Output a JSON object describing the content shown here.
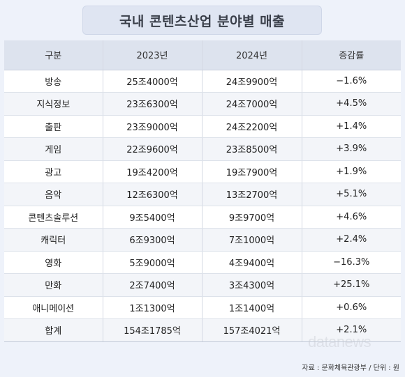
{
  "title": "국내 콘텐츠산업 분야별 매출",
  "table": {
    "headers": [
      "구분",
      "2023년",
      "2024년",
      "증감률"
    ],
    "rows": [
      [
        "방송",
        "25조4000억",
        "24조9900억",
        "−1.6%"
      ],
      [
        "지식정보",
        "23조6300억",
        "24조7000억",
        "+4.5%"
      ],
      [
        "출판",
        "23조9000억",
        "24조2200억",
        "+1.4%"
      ],
      [
        "게임",
        "22조9600억",
        "23조8500억",
        "+3.9%"
      ],
      [
        "광고",
        "19조4200억",
        "19조7900억",
        "+1.9%"
      ],
      [
        "음악",
        "12조6300억",
        "13조2700억",
        "+5.1%"
      ],
      [
        "콘텐츠솔루션",
        "9조5400억",
        "9조9700억",
        "+4.6%"
      ],
      [
        "캐릭터",
        "6조9300억",
        "7조1000억",
        "+2.4%"
      ],
      [
        "영화",
        "5조9000억",
        "4조9400억",
        "−16.3%"
      ],
      [
        "만화",
        "2조7400억",
        "3조4300억",
        "+25.1%"
      ],
      [
        "애니메이션",
        "1조1300억",
        "1조1400억",
        "+0.6%"
      ],
      [
        "합계",
        "154조1785억",
        "157조4021억",
        "+2.1%"
      ]
    ]
  },
  "source": "자료 : 문화체육관광부 / 단위 : 원",
  "watermark": "datanews"
}
